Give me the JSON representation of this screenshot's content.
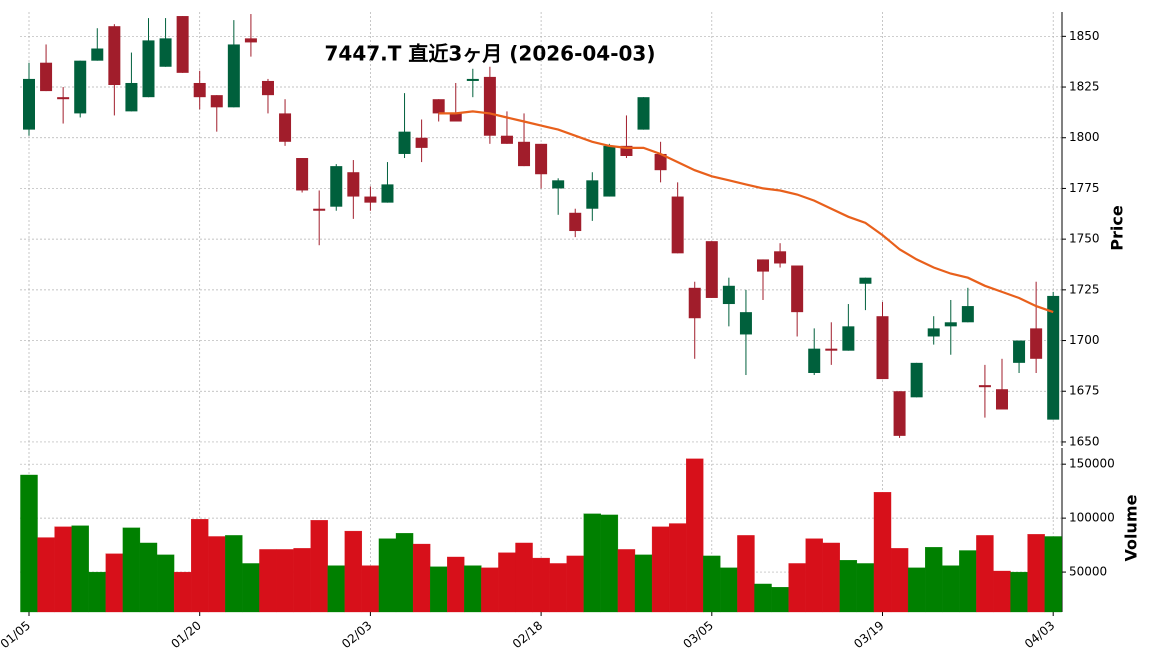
{
  "chart_data": [
    {
      "type": "candlestick",
      "title": "7447.T  直近3ヶ月 (2026-04-03)",
      "ylabel": "Price",
      "categories": [
        "01/05",
        null,
        null,
        null,
        null,
        null,
        null,
        null,
        null,
        null,
        "01/20",
        null,
        null,
        null,
        null,
        null,
        null,
        null,
        null,
        null,
        "02/03",
        null,
        null,
        null,
        null,
        null,
        null,
        null,
        null,
        null,
        "02/18",
        null,
        null,
        null,
        null,
        null,
        null,
        null,
        null,
        null,
        "03/05",
        null,
        null,
        null,
        null,
        null,
        null,
        null,
        null,
        null,
        "03/19",
        null,
        null,
        null,
        null,
        null,
        null,
        null,
        null,
        null,
        "04/03"
      ],
      "open": [
        1804,
        1837,
        1820,
        1812,
        1838,
        1855,
        1813,
        1820,
        1835,
        1860,
        1827,
        1821,
        1815,
        1849,
        1828,
        1812,
        1790,
        1765,
        1766,
        1783,
        1771,
        1768,
        1792,
        1800,
        1819,
        1812,
        1828,
        1830,
        1801,
        1798,
        1797,
        1775,
        1763,
        1765,
        1771,
        1796,
        1804,
        1792,
        1771,
        1726,
        1749,
        1718,
        1703,
        1740,
        1744,
        1737,
        1684,
        1696,
        1695,
        1728,
        1712,
        1675,
        1672,
        1702,
        1707,
        1709,
        1678,
        1676,
        1689,
        1706,
        1661
      ],
      "high": [
        1837,
        1846,
        1825,
        1838,
        1854,
        1856,
        1842,
        1859,
        1859,
        1860,
        1833,
        1821,
        1858,
        1861,
        1829,
        1819,
        1790,
        1774,
        1787,
        1789,
        1776,
        1788,
        1822,
        1809,
        1819,
        1827,
        1834,
        1835,
        1813,
        1812,
        1797,
        1780,
        1765,
        1783,
        1797,
        1811,
        1820,
        1798,
        1778,
        1729,
        1749,
        1731,
        1725,
        1740,
        1748,
        1737,
        1706,
        1709,
        1718,
        1731,
        1719,
        1675,
        1689,
        1712,
        1720,
        1726,
        1688,
        1691,
        1700,
        1729,
        1724
      ],
      "low": [
        1801,
        1823,
        1807,
        1810,
        1838,
        1811,
        1813,
        1820,
        1835,
        1832,
        1814,
        1803,
        1815,
        1840,
        1812,
        1796,
        1773,
        1747,
        1764,
        1760,
        1764,
        1768,
        1790,
        1788,
        1808,
        1808,
        1820,
        1797,
        1797,
        1786,
        1775,
        1762,
        1751,
        1759,
        1771,
        1790,
        1804,
        1778,
        1743,
        1691,
        1721,
        1707,
        1683,
        1720,
        1736,
        1702,
        1683,
        1688,
        1695,
        1715,
        1681,
        1652,
        1672,
        1698,
        1693,
        1709,
        1662,
        1666,
        1684,
        1684,
        1661
      ],
      "close": [
        1829,
        1823,
        1819,
        1838,
        1844,
        1826,
        1827,
        1848,
        1849,
        1832,
        1820,
        1815,
        1846,
        1847,
        1821,
        1798,
        1774,
        1764,
        1786,
        1771,
        1768,
        1777,
        1803,
        1795,
        1812,
        1808,
        1829,
        1801,
        1797,
        1786,
        1782,
        1779,
        1754,
        1779,
        1796,
        1791,
        1820,
        1784,
        1743,
        1711,
        1721,
        1727,
        1714,
        1734,
        1738,
        1714,
        1696,
        1695,
        1707,
        1731,
        1681,
        1653,
        1689,
        1706,
        1709,
        1717,
        1677,
        1666,
        1700,
        1691,
        1722
      ],
      "up_color": "#00603c",
      "down_color": "#a11d2b",
      "moving_average": {
        "color": "#e8601c",
        "values": [
          null,
          null,
          null,
          null,
          null,
          null,
          null,
          null,
          null,
          null,
          null,
          null,
          null,
          null,
          null,
          null,
          null,
          null,
          null,
          null,
          null,
          null,
          null,
          null,
          1812,
          1812,
          1813,
          1812,
          1810,
          1808,
          1806,
          1804,
          1801,
          1798,
          1796,
          1795,
          1795,
          1792,
          1788,
          1784,
          1781,
          1779,
          1777,
          1775,
          1774,
          1772,
          1769,
          1765,
          1761,
          1758,
          1752,
          1745,
          1740,
          1736,
          1733,
          1731,
          1727,
          1724,
          1721,
          1717,
          1714
        ]
      },
      "ylim": [
        1648,
        1862
      ],
      "yticks": [
        1650,
        1675,
        1700,
        1725,
        1750,
        1775,
        1800,
        1825,
        1850
      ],
      "grid": true
    },
    {
      "type": "bar",
      "ylabel": "Volume",
      "values": [
        140000,
        82000,
        92000,
        93000,
        50000,
        67000,
        91000,
        77000,
        66000,
        50000,
        99000,
        83000,
        84000,
        58000,
        71000,
        71000,
        72000,
        98000,
        56000,
        88000,
        56000,
        81000,
        86000,
        76000,
        55000,
        64000,
        56000,
        54000,
        68000,
        77000,
        63000,
        58000,
        65000,
        104000,
        103000,
        71000,
        66000,
        92000,
        95000,
        155000,
        65000,
        54000,
        84000,
        39000,
        36000,
        58000,
        81000,
        77000,
        61000,
        58000,
        124000,
        72000,
        54000,
        73000,
        56000,
        70000,
        84000,
        51000,
        50000,
        85000,
        83000
      ],
      "up_color": "#008000",
      "down_color": "#d7101a",
      "ylim": [
        13000,
        165000
      ],
      "yticks": [
        50000,
        100000,
        150000
      ],
      "grid": true
    }
  ]
}
